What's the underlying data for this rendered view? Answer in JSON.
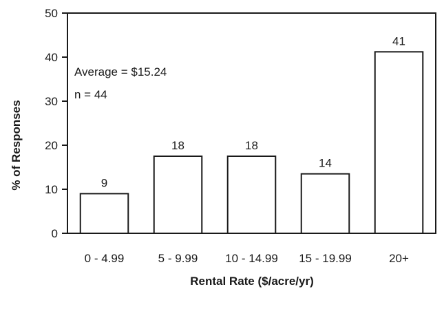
{
  "chart_data": {
    "type": "bar",
    "categories": [
      "0 - 4.99",
      "5 - 9.99",
      "10 - 14.99",
      "15 - 19.99",
      "20+"
    ],
    "values": [
      9,
      17.5,
      17.5,
      13.5,
      41.2
    ],
    "data_labels": [
      "9",
      "18",
      "18",
      "14",
      "41"
    ],
    "xlabel": "Rental Rate ($/acre/yr)",
    "ylabel": "% of Responses",
    "ylim": [
      0,
      50
    ],
    "yticks": [
      "0",
      "10",
      "20",
      "30",
      "40",
      "50"
    ],
    "grid": false,
    "annotations": [
      "Average = $15.24",
      "n = 44"
    ]
  }
}
